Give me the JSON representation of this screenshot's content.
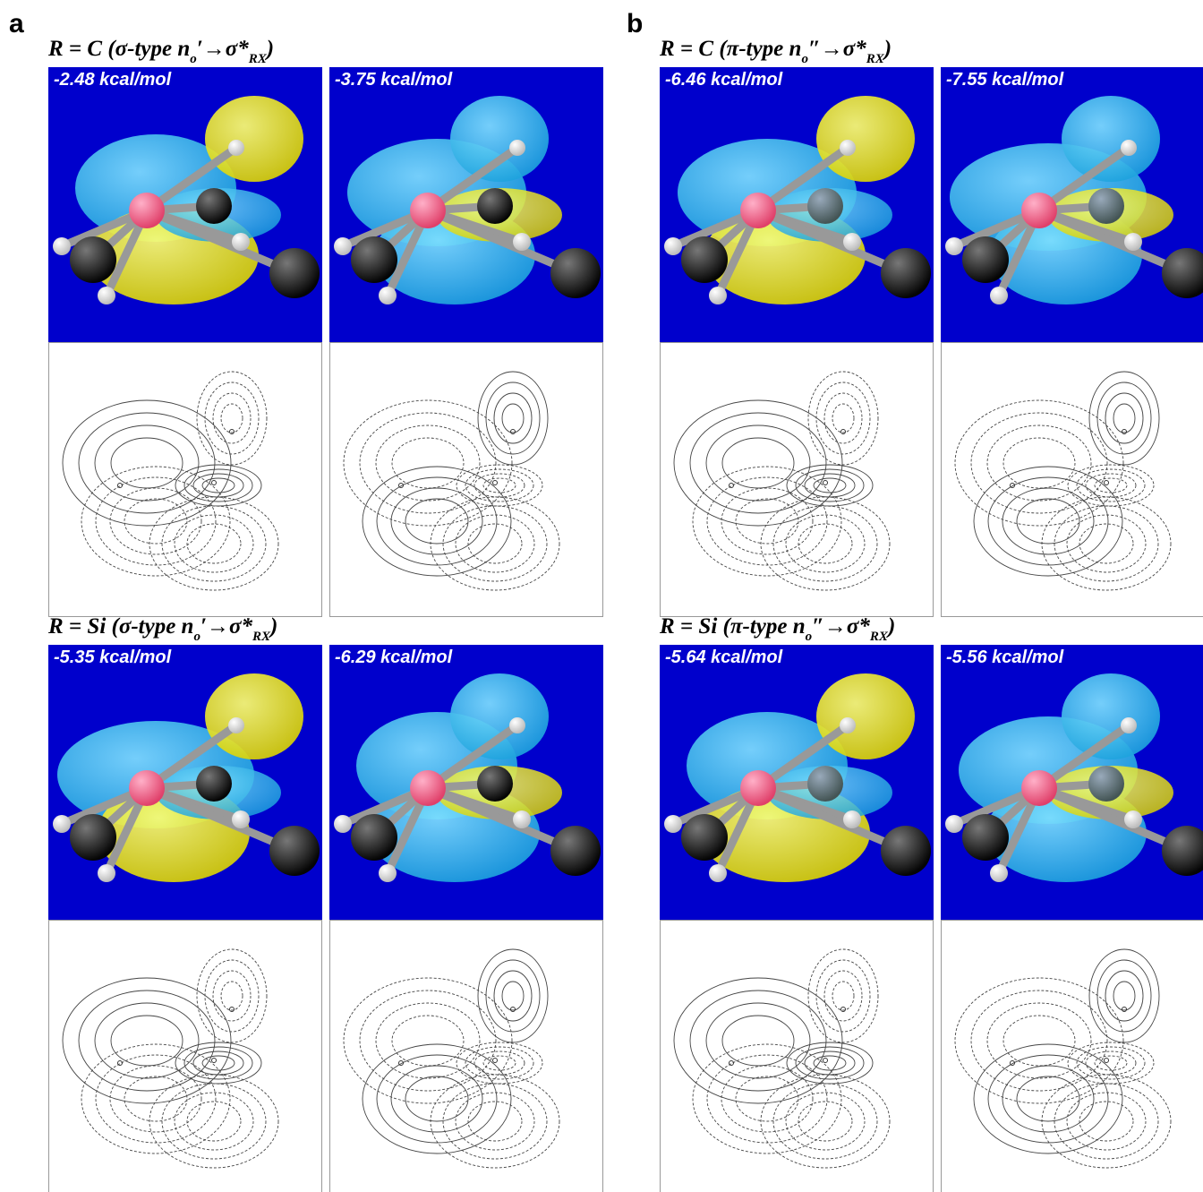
{
  "panels": [
    {
      "letter": "a",
      "rows": [
        {
          "heading": {
            "prefix": "R = C (σ-type n",
            "sub1": "o",
            "mid": "′→σ*",
            "sub2": "RX",
            "suffix": ")"
          },
          "energies": [
            "-2.48 kcal/mol",
            "-3.75 kcal/mol"
          ]
        },
        {
          "heading": {
            "prefix": "R = Si (σ-type n",
            "sub1": "o",
            "mid": "′→σ*",
            "sub2": "RX",
            "suffix": ")"
          },
          "energies": [
            "-5.35 kcal/mol",
            "-6.29 kcal/mol"
          ]
        }
      ]
    },
    {
      "letter": "b",
      "rows": [
        {
          "heading": {
            "prefix": "R = C (π-type n",
            "sub1": "o",
            "mid": "″→σ*",
            "sub2": "RX",
            "suffix": ")"
          },
          "energies": [
            "-6.46 kcal/mol",
            "-7.55 kcal/mol"
          ]
        },
        {
          "heading": {
            "prefix": "R = Si (π-type n",
            "sub1": "o",
            "mid": "″→σ*",
            "sub2": "RX",
            "suffix": ")"
          },
          "energies": [
            "-5.64 kcal/mol",
            "-5.56 kcal/mol"
          ]
        }
      ]
    }
  ]
}
